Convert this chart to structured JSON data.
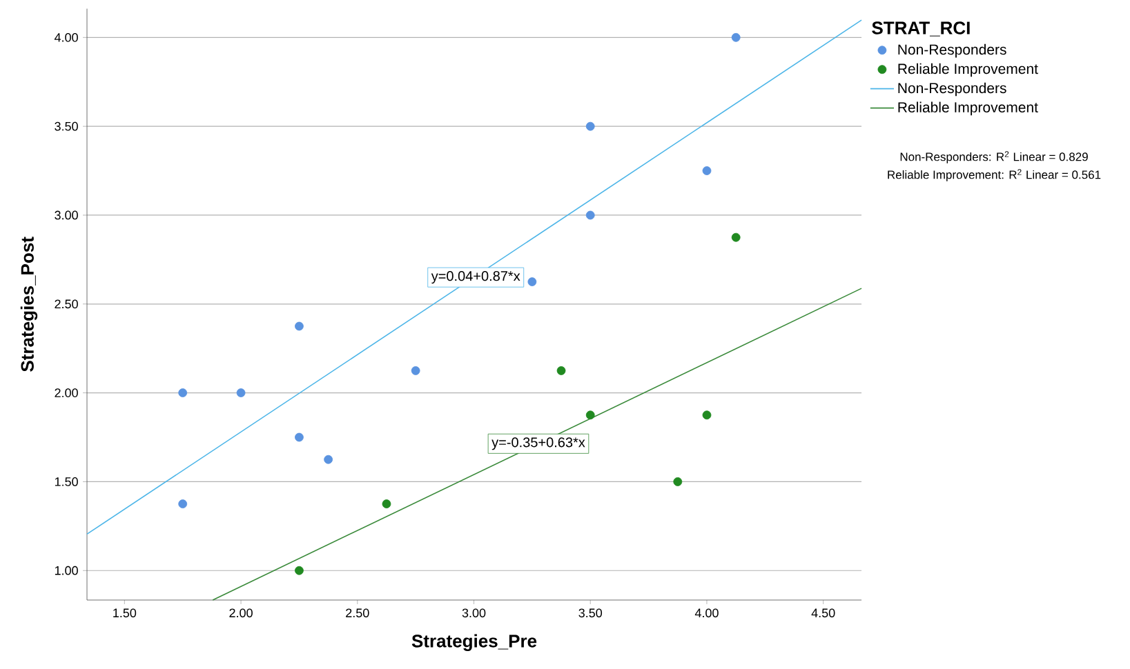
{
  "chart_data": {
    "type": "scatter",
    "xlabel": "Strategies_Pre",
    "ylabel": "Strategies_Post",
    "legend_title": "STRAT_RCI",
    "xlim": [
      1.339,
      4.664
    ],
    "ylim": [
      0.834,
      4.162
    ],
    "xticks": [
      {
        "value": 1.5,
        "label": "1.50"
      },
      {
        "value": 2.0,
        "label": "2.00"
      },
      {
        "value": 2.5,
        "label": "2.50"
      },
      {
        "value": 3.0,
        "label": "3.00"
      },
      {
        "value": 3.5,
        "label": "3.50"
      },
      {
        "value": 4.0,
        "label": "4.00"
      },
      {
        "value": 4.5,
        "label": "4.50"
      }
    ],
    "yticks": [
      {
        "value": 1.0,
        "label": "1.00"
      },
      {
        "value": 1.5,
        "label": "1.50"
      },
      {
        "value": 2.0,
        "label": "2.00"
      },
      {
        "value": 2.5,
        "label": "2.50"
      },
      {
        "value": 3.0,
        "label": "3.00"
      },
      {
        "value": 3.5,
        "label": "3.50"
      },
      {
        "value": 4.0,
        "label": "4.00"
      }
    ],
    "grid": "y",
    "legend": "top right",
    "series": [
      {
        "name": "Non-Responders",
        "marker": "circle",
        "color": "#5a93e0",
        "x": [
          1.75,
          1.75,
          2.0,
          2.25,
          2.25,
          2.375,
          2.75,
          3.25,
          3.5,
          3.5,
          4.0,
          4.125
        ],
        "values": [
          2.0,
          1.375,
          2.0,
          2.375,
          1.75,
          1.625,
          2.125,
          2.625,
          3.5,
          3.0,
          3.25,
          4.0
        ]
      },
      {
        "name": "Reliable Improvement",
        "marker": "circle",
        "color": "#218a21",
        "x": [
          2.25,
          2.625,
          3.375,
          3.5,
          3.875,
          4.0,
          4.125
        ],
        "values": [
          1.0,
          1.375,
          2.125,
          1.875,
          1.5,
          1.875,
          2.875
        ]
      },
      {
        "name": "Non-Responders",
        "type": "line",
        "marker": "none",
        "color": "#4cb5e8",
        "x": [
          1.339,
          4.664
        ],
        "values": [
          1.205,
          4.098
        ]
      },
      {
        "name": "Reliable Improvement",
        "type": "line",
        "marker": "none",
        "color": "#3a8a3a",
        "x": [
          1.879,
          4.664
        ],
        "values": [
          0.834,
          2.588
        ]
      }
    ],
    "annotations": [
      {
        "text": "y=0.04+0.87*x",
        "x": 3.008,
        "y": 2.65
      },
      {
        "text": "y=-0.35+0.63*x",
        "x": 3.277,
        "y": 1.714
      },
      "Non-Responders: R$^{2}$ Linear = 0.829",
      "Reliable Improvement: R$^{2}$ Linear = 0.561"
    ]
  }
}
